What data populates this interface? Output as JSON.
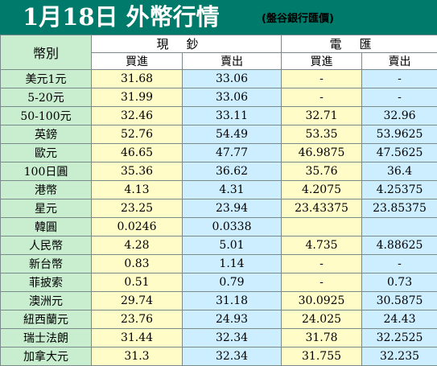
{
  "header": {
    "title": "1月18日 外幣行情",
    "subtitle": "(盤谷銀行匯價)"
  },
  "table": {
    "corner": "幣別",
    "cash": {
      "label": "現鈔",
      "buy": "買進",
      "sell": "賣出"
    },
    "wire": {
      "label": "電匯",
      "buy": "買進",
      "sell": "賣出"
    },
    "rows": [
      {
        "name": "美元1元",
        "cash_buy": "31.68",
        "cash_sell": "33.06",
        "wire_buy": "-",
        "wire_sell": "-"
      },
      {
        "name": "5-20元",
        "cash_buy": "31.99",
        "cash_sell": "33.06",
        "wire_buy": "-",
        "wire_sell": "-"
      },
      {
        "name": "50-100元",
        "cash_buy": "32.46",
        "cash_sell": "33.11",
        "wire_buy": "32.71",
        "wire_sell": "32.96"
      },
      {
        "name": "英鎊",
        "cash_buy": "52.76",
        "cash_sell": "54.49",
        "wire_buy": "53.35",
        "wire_sell": "53.9625"
      },
      {
        "name": "歐元",
        "cash_buy": "46.65",
        "cash_sell": "47.77",
        "wire_buy": "46.9875",
        "wire_sell": "47.5625"
      },
      {
        "name": "100日圓",
        "cash_buy": "35.36",
        "cash_sell": "36.62",
        "wire_buy": "35.76",
        "wire_sell": "36.4"
      },
      {
        "name": "港幣",
        "cash_buy": "4.13",
        "cash_sell": "4.31",
        "wire_buy": "4.2075",
        "wire_sell": "4.25375"
      },
      {
        "name": "星元",
        "cash_buy": "23.25",
        "cash_sell": "23.94",
        "wire_buy": "23.43375",
        "wire_sell": "23.85375"
      },
      {
        "name": "韓圓",
        "cash_buy": "0.0246",
        "cash_sell": "0.0338",
        "wire_buy": "",
        "wire_sell": ""
      },
      {
        "name": "人民幣",
        "cash_buy": "4.28",
        "cash_sell": "5.01",
        "wire_buy": "4.735",
        "wire_sell": "4.88625"
      },
      {
        "name": "新台幣",
        "cash_buy": "0.83",
        "cash_sell": "1.14",
        "wire_buy": "-",
        "wire_sell": "-"
      },
      {
        "name": "菲披索",
        "cash_buy": "0.51",
        "cash_sell": "0.79",
        "wire_buy": "-",
        "wire_sell": "0.73"
      },
      {
        "name": "澳洲元",
        "cash_buy": "29.74",
        "cash_sell": "31.18",
        "wire_buy": "30.0925",
        "wire_sell": "30.5875"
      },
      {
        "name": "紐西蘭元",
        "cash_buy": "23.76",
        "cash_sell": "24.93",
        "wire_buy": "24.025",
        "wire_sell": "24.43"
      },
      {
        "name": "瑞士法朗",
        "cash_buy": "31.44",
        "cash_sell": "32.34",
        "wire_buy": "31.78",
        "wire_sell": "32.2525"
      },
      {
        "name": "加拿大元",
        "cash_buy": "31.3",
        "cash_sell": "32.34",
        "wire_buy": "31.755",
        "wire_sell": "32.235"
      }
    ]
  },
  "colors": {
    "header_bg": "#007a6a",
    "name_col_bg": "#c9eecf",
    "buy_col_bg": "#fffcc8",
    "sell_col_bg": "#cceeff"
  }
}
